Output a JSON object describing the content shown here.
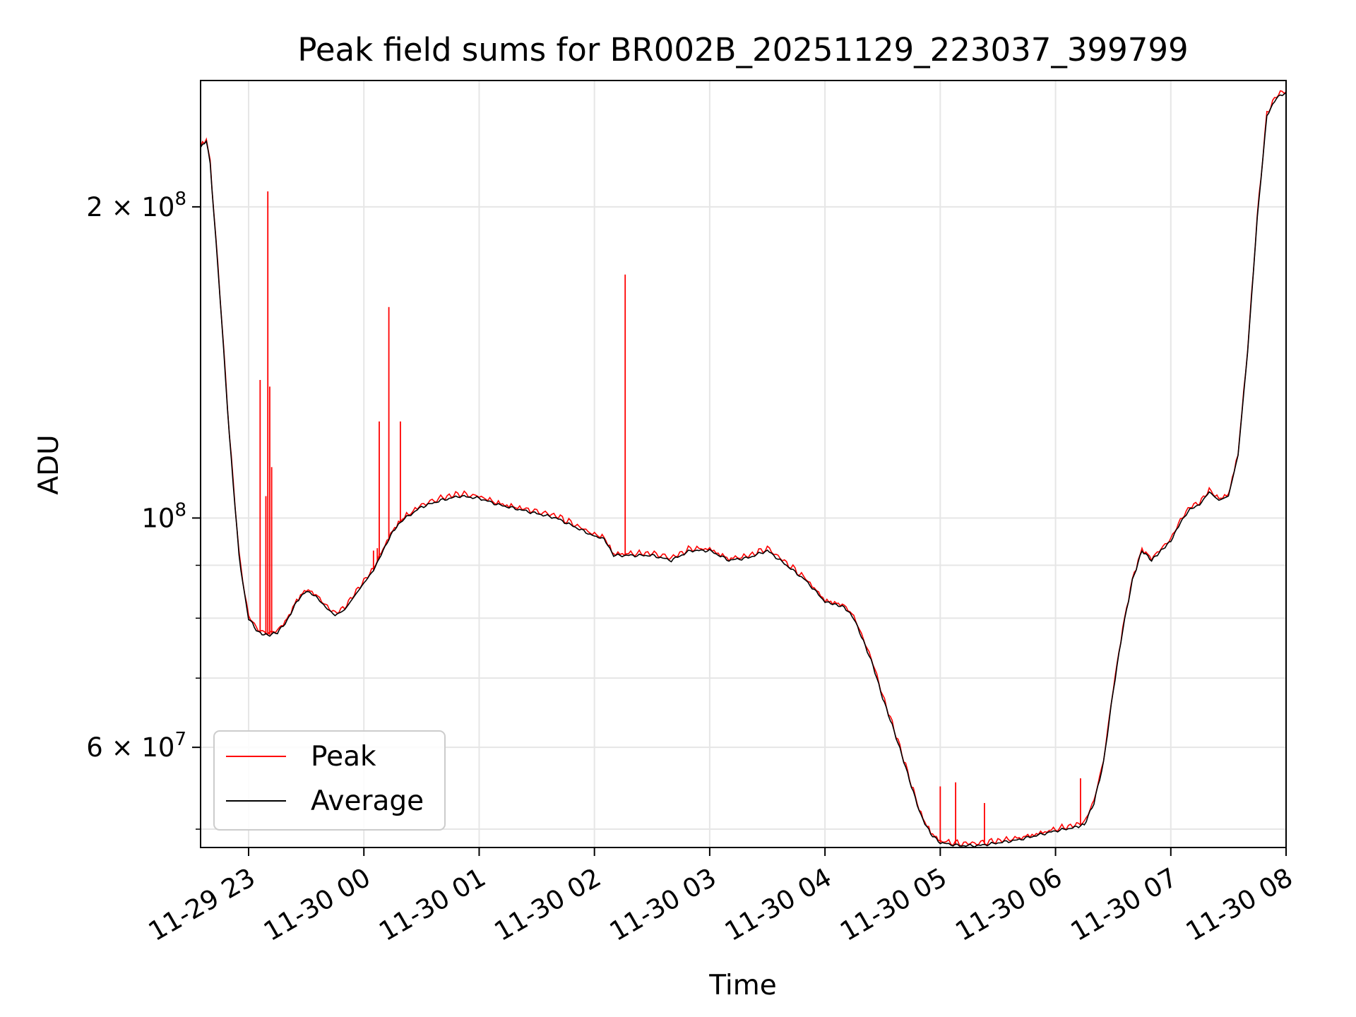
{
  "chart_data": {
    "type": "line",
    "title": "Peak field sums for BR002B_20251129_223037_399799",
    "xlabel": "Time",
    "ylabel": "ADU",
    "y_scale": "log",
    "xlim": [
      "2025-11-29 22:35",
      "2025-11-30 08:00"
    ],
    "ylim": [
      48000000,
      265000000
    ],
    "x_ticks": [
      {
        "value": "2025-11-29 23:00",
        "label": "11-29 23"
      },
      {
        "value": "2025-11-30 00:00",
        "label": "11-30 00"
      },
      {
        "value": "2025-11-30 01:00",
        "label": "11-30 01"
      },
      {
        "value": "2025-11-30 02:00",
        "label": "11-30 02"
      },
      {
        "value": "2025-11-30 03:00",
        "label": "11-30 03"
      },
      {
        "value": "2025-11-30 04:00",
        "label": "11-30 04"
      },
      {
        "value": "2025-11-30 05:00",
        "label": "11-30 05"
      },
      {
        "value": "2025-11-30 06:00",
        "label": "11-30 06"
      },
      {
        "value": "2025-11-30 07:00",
        "label": "11-30 07"
      },
      {
        "value": "2025-11-30 08:00",
        "label": "11-30 08"
      }
    ],
    "y_major_ticks": [
      {
        "value": 60000000,
        "base": "6 × 10",
        "exp": "7"
      },
      {
        "value": 100000000,
        "base": "10",
        "exp": "8"
      },
      {
        "value": 200000000,
        "base": "2 × 10",
        "exp": "8"
      }
    ],
    "y_minor_ticks": [
      50000000,
      70000000,
      80000000,
      90000000
    ],
    "grid": true,
    "legend_position": "lower-left",
    "series": [
      {
        "name": "Average",
        "color": "#000000",
        "x": [
          "2025-11-29 22:35",
          "2025-11-29 22:38",
          "2025-11-29 22:40",
          "2025-11-29 22:45",
          "2025-11-29 22:50",
          "2025-11-29 22:55",
          "2025-11-29 22:58",
          "2025-11-29 23:00",
          "2025-11-29 23:05",
          "2025-11-29 23:10",
          "2025-11-29 23:15",
          "2025-11-29 23:20",
          "2025-11-29 23:25",
          "2025-11-29 23:30",
          "2025-11-29 23:35",
          "2025-11-29 23:40",
          "2025-11-29 23:45",
          "2025-11-29 23:50",
          "2025-11-29 23:55",
          "2025-11-30 00:00",
          "2025-11-30 00:05",
          "2025-11-30 00:10",
          "2025-11-30 00:15",
          "2025-11-30 00:20",
          "2025-11-30 00:30",
          "2025-11-30 00:40",
          "2025-11-30 00:50",
          "2025-11-30 01:00",
          "2025-11-30 01:10",
          "2025-11-30 01:20",
          "2025-11-30 01:30",
          "2025-11-30 01:40",
          "2025-11-30 01:50",
          "2025-11-30 02:00",
          "2025-11-30 02:05",
          "2025-11-30 02:10",
          "2025-11-30 02:20",
          "2025-11-30 02:30",
          "2025-11-30 02:40",
          "2025-11-30 02:50",
          "2025-11-30 03:00",
          "2025-11-30 03:10",
          "2025-11-30 03:20",
          "2025-11-30 03:30",
          "2025-11-30 03:40",
          "2025-11-30 03:50",
          "2025-11-30 04:00",
          "2025-11-30 04:05",
          "2025-11-30 04:10",
          "2025-11-30 04:15",
          "2025-11-30 04:20",
          "2025-11-30 04:25",
          "2025-11-30 04:30",
          "2025-11-30 04:35",
          "2025-11-30 04:40",
          "2025-11-30 04:45",
          "2025-11-30 04:50",
          "2025-11-30 04:55",
          "2025-11-30 05:00",
          "2025-11-30 05:10",
          "2025-11-30 05:20",
          "2025-11-30 05:30",
          "2025-11-30 05:40",
          "2025-11-30 05:50",
          "2025-11-30 06:00",
          "2025-11-30 06:10",
          "2025-11-30 06:15",
          "2025-11-30 06:20",
          "2025-11-30 06:25",
          "2025-11-30 06:30",
          "2025-11-30 06:35",
          "2025-11-30 06:40",
          "2025-11-30 06:45",
          "2025-11-30 06:50",
          "2025-11-30 06:55",
          "2025-11-30 07:00",
          "2025-11-30 07:05",
          "2025-11-30 07:10",
          "2025-11-30 07:15",
          "2025-11-30 07:20",
          "2025-11-30 07:25",
          "2025-11-30 07:30",
          "2025-11-30 07:35",
          "2025-11-30 07:40",
          "2025-11-30 07:45",
          "2025-11-30 07:50",
          "2025-11-30 07:55",
          "2025-11-30 08:00"
        ],
        "y": [
          228000000,
          232000000,
          220000000,
          165000000,
          120000000,
          92000000,
          84000000,
          80000000,
          77500000,
          77000000,
          77500000,
          79500000,
          83000000,
          85000000,
          84000000,
          82000000,
          80500000,
          81500000,
          84000000,
          86500000,
          89000000,
          93000000,
          97000000,
          99500000,
          102500000,
          104000000,
          105000000,
          104500000,
          103000000,
          102000000,
          101000000,
          100000000,
          98000000,
          96000000,
          95500000,
          92000000,
          92000000,
          92000000,
          91000000,
          93000000,
          93000000,
          91000000,
          91500000,
          93000000,
          90000000,
          87000000,
          83000000,
          82500000,
          82000000,
          80000000,
          76000000,
          72000000,
          67000000,
          63000000,
          59000000,
          55000000,
          51500000,
          49500000,
          48500000,
          48200000,
          48200000,
          48500000,
          48800000,
          49300000,
          49800000,
          50200000,
          50500000,
          53000000,
          58000000,
          68000000,
          78000000,
          87000000,
          93000000,
          91000000,
          93000000,
          95000000,
          99000000,
          102000000,
          103000000,
          106000000,
          104000000,
          105000000,
          115000000,
          145000000,
          195000000,
          245000000,
          255000000,
          258000000
        ]
      },
      {
        "name": "Peak",
        "color": "#ff0000",
        "spikes": [
          {
            "x": "2025-11-29 23:06",
            "y": 136000000
          },
          {
            "x": "2025-11-29 23:09",
            "y": 105000000
          },
          {
            "x": "2025-11-29 23:10",
            "y": 207000000
          },
          {
            "x": "2025-11-29 23:11",
            "y": 134000000
          },
          {
            "x": "2025-11-29 23:12",
            "y": 112000000
          },
          {
            "x": "2025-11-30 00:05",
            "y": 93000000
          },
          {
            "x": "2025-11-30 00:07",
            "y": 93500000
          },
          {
            "x": "2025-11-30 00:08",
            "y": 124000000
          },
          {
            "x": "2025-11-30 00:13",
            "y": 160000000
          },
          {
            "x": "2025-11-30 00:19",
            "y": 124000000
          },
          {
            "x": "2025-11-30 02:16",
            "y": 172000000
          },
          {
            "x": "2025-11-30 05:00",
            "y": 55000000
          },
          {
            "x": "2025-11-30 05:08",
            "y": 55500000
          },
          {
            "x": "2025-11-30 05:23",
            "y": 53000000
          },
          {
            "x": "2025-11-30 06:13",
            "y": 56000000
          }
        ]
      }
    ]
  }
}
